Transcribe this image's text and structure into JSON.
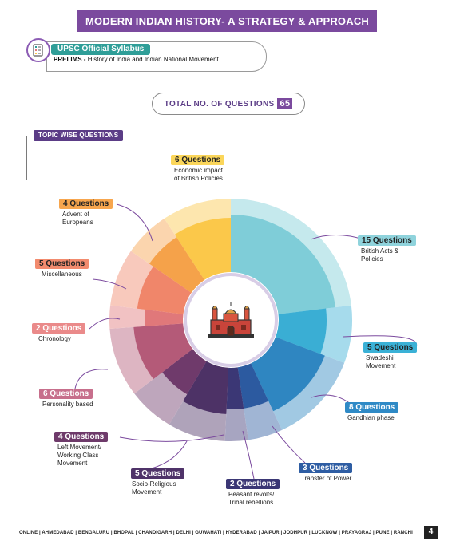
{
  "header": {
    "title": "MODERN INDIAN HISTORY- A STRATEGY & APPROACH"
  },
  "syllabus": {
    "badge": "UPSC Official Syllabus",
    "prelims_label": "PRELIMS -",
    "prelims_text": "History of India and Indian National Movement"
  },
  "total": {
    "label": "TOTAL NO. OF QUESTIONS",
    "value": "65"
  },
  "topic_label": "TOPIC WISE QUESTIONS",
  "chart_data": {
    "type": "pie",
    "total": 65,
    "slices": [
      {
        "label": "British Acts & Policies",
        "value": 15,
        "badge": "15 Questions",
        "color": "#7fcdd8"
      },
      {
        "label": "Swadeshi Movement",
        "value": 5,
        "badge": "5 Questions",
        "color": "#3aaed4"
      },
      {
        "label": "Gandhian phase",
        "value": 8,
        "badge": "8 Questions",
        "color": "#2f86c1"
      },
      {
        "label": "Transfer of Power",
        "value": 3,
        "badge": "3 Questions",
        "color": "#2c5aa0"
      },
      {
        "label": "Peasant revolts/ Tribal rebellions",
        "value": 2,
        "badge": "2 Questions",
        "color": "#3b3775"
      },
      {
        "label": "Socio-Religious Movement",
        "value": 5,
        "badge": "5 Questions",
        "color": "#4d3266"
      },
      {
        "label": "Left Movement/ Working Class Movement",
        "value": 4,
        "badge": "4 Questions",
        "color": "#6f3a6b"
      },
      {
        "label": "Personality based",
        "value": 6,
        "badge": "6 Questions",
        "color": "#b45a78"
      },
      {
        "label": "Chronology",
        "value": 2,
        "badge": "2 Questions",
        "color": "#e0787a"
      },
      {
        "label": "Miscellaneous",
        "value": 5,
        "badge": "5 Questions",
        "color": "#f0866a"
      },
      {
        "label": "Advent of Europeans",
        "value": 4,
        "badge": "4 Questions",
        "color": "#f5a24a"
      },
      {
        "label": "Economic impact of British Policies",
        "value": 6,
        "badge": "6 Questions",
        "color": "#fbc84a"
      }
    ]
  },
  "callouts": [
    {
      "badge": "6 Questions",
      "desc_lines": [
        "Economic impact",
        "of British Policies"
      ],
      "badge_bg": "#fbd65a",
      "badge_fg": "#222222"
    },
    {
      "badge": "4 Questions",
      "desc_lines": [
        "Advent of",
        "Europeans"
      ],
      "badge_bg": "#f7a64e",
      "badge_fg": "#222222"
    },
    {
      "badge": "5 Questions",
      "desc_lines": [
        "Miscellaneous"
      ],
      "badge_bg": "#f28b6e",
      "badge_fg": "#222222"
    },
    {
      "badge": "2 Questions",
      "desc_lines": [
        "Chronology"
      ],
      "badge_bg": "#ea8a8a",
      "badge_fg": "#ffffff"
    },
    {
      "badge": "6 Questions",
      "desc_lines": [
        "Personality based"
      ],
      "badge_bg": "#c76f8c",
      "badge_fg": "#ffffff"
    },
    {
      "badge": "4 Questions",
      "desc_lines": [
        "Left Movement/",
        "Working Class",
        "Movement"
      ],
      "badge_bg": "#6e3a6a",
      "badge_fg": "#ffffff"
    },
    {
      "badge": "5 Questions",
      "desc_lines": [
        "Socio-Religious",
        "Movement"
      ],
      "badge_bg": "#4f3369",
      "badge_fg": "#ffffff"
    },
    {
      "badge": "2 Questions",
      "desc_lines": [
        "Peasant revolts/",
        "Tribal rebellions"
      ],
      "badge_bg": "#3b3775",
      "badge_fg": "#ffffff"
    },
    {
      "badge": "3 Questions",
      "desc_lines": [
        "Transfer of Power"
      ],
      "badge_bg": "#2e5da3",
      "badge_fg": "#ffffff"
    },
    {
      "badge": "8 Questions",
      "desc_lines": [
        "Gandhian phase"
      ],
      "badge_bg": "#2f8ac6",
      "badge_fg": "#ffffff"
    },
    {
      "badge": "5 Questions",
      "desc_lines": [
        "Swadeshi",
        "Movement"
      ],
      "badge_bg": "#3ab1d6",
      "badge_fg": "#222222"
    },
    {
      "badge": "15 Questions",
      "desc_lines": [
        "British Acts &",
        "Policies"
      ],
      "badge_bg": "#8fd3dc",
      "badge_fg": "#222222"
    }
  ],
  "footer": {
    "cities": "ONLINE | AHMEDABAD | BENGALURU | BHOPAL | CHANDIGARH | DELHI | GUWAHATI | HYDERABAD | JAIPUR | JODHPUR | LUCKNOW | PRAYAGRAJ | PUNE | RANCHI",
    "page_number": "4"
  },
  "icons": [
    "syllabus-document-icon",
    "red-fort-icon"
  ]
}
